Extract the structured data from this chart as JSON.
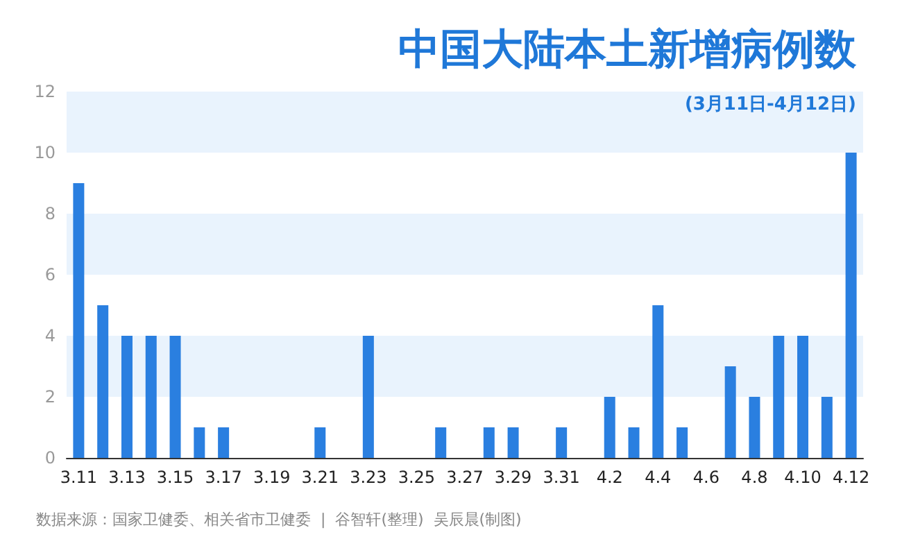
{
  "chart_data": {
    "type": "bar",
    "title": "中国大陆本土新增病例数",
    "subtitle": "(3月11日-4月12日)",
    "categories": [
      "3.11",
      null,
      "3.13",
      null,
      "3.15",
      null,
      "3.17",
      null,
      "3.19",
      null,
      "3.21",
      null,
      "3.23",
      null,
      "3.25",
      null,
      "3.27",
      null,
      "3.29",
      null,
      "3.31",
      null,
      "4.2",
      null,
      "4.4",
      null,
      "4.6",
      null,
      "4.8",
      null,
      "4.10",
      null,
      "4.12"
    ],
    "values": [
      9,
      5,
      4,
      4,
      4,
      1,
      1,
      0,
      0,
      0,
      1,
      0,
      4,
      0,
      0,
      1,
      0,
      1,
      1,
      0,
      1,
      0,
      2,
      1,
      5,
      1,
      0,
      3,
      2,
      4,
      4,
      2,
      10
    ],
    "color": "#2a7fe0",
    "ylim": [
      0,
      12
    ],
    "yticks": [
      0,
      2,
      4,
      6,
      8,
      10,
      12
    ],
    "annotations": [
      "数据来源：国家卫健委、相关省市卫健委  |  谷智轩(整理)  吴辰晨(制图)"
    ]
  }
}
